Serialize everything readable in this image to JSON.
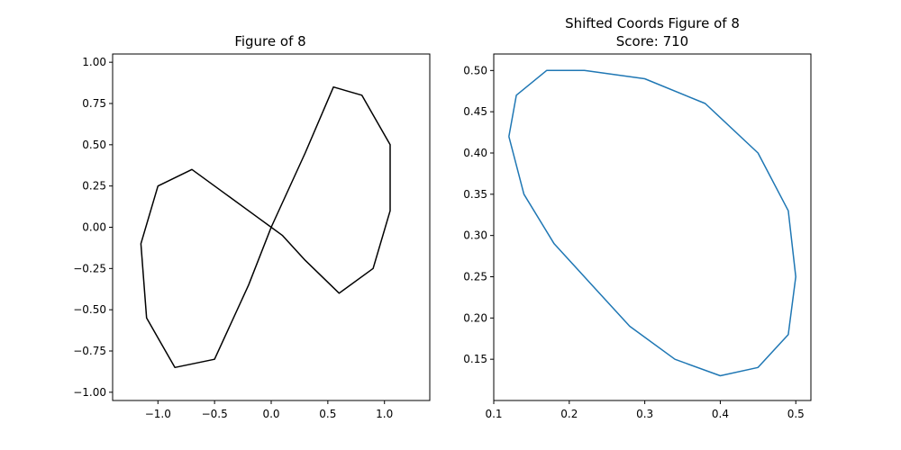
{
  "chart_data": [
    {
      "type": "line",
      "title": "Figure of 8",
      "xlabel": "",
      "ylabel": "",
      "xlim": [
        -1.4,
        1.4
      ],
      "ylim": [
        -1.05,
        1.05
      ],
      "xticks": [
        -1.0,
        -0.5,
        0.0,
        0.5,
        1.0
      ],
      "xtick_labels": [
        "−1.0",
        "−0.5",
        "0.0",
        "0.5",
        "1.0"
      ],
      "yticks": [
        -1.0,
        -0.75,
        -0.5,
        -0.25,
        0.0,
        0.25,
        0.5,
        0.75,
        1.0
      ],
      "ytick_labels": [
        "−1.00",
        "−0.75",
        "−0.50",
        "−0.25",
        "0.00",
        "0.25",
        "0.50",
        "0.75",
        "1.00"
      ],
      "grid": false,
      "series": [
        {
          "color": "#000000",
          "x": [
            0.0,
            0.3,
            0.55,
            0.8,
            1.05,
            1.05,
            0.9,
            0.6,
            0.3,
            0.1,
            0.0,
            -0.2,
            -0.5,
            -0.85,
            -1.1,
            -1.15,
            -1.0,
            -0.7,
            -0.4,
            -0.1,
            0.0
          ],
          "y": [
            0.0,
            0.45,
            0.85,
            0.8,
            0.5,
            0.1,
            -0.25,
            -0.4,
            -0.2,
            -0.05,
            0.0,
            -0.35,
            -0.8,
            -0.85,
            -0.55,
            -0.1,
            0.25,
            0.35,
            0.2,
            0.05,
            0.0
          ]
        }
      ]
    },
    {
      "type": "line",
      "title": "Shifted Coords Figure of 8\nScore: 710",
      "xlabel": "",
      "ylabel": "",
      "xlim": [
        0.1,
        0.52
      ],
      "ylim": [
        0.1,
        0.52
      ],
      "xticks": [
        0.1,
        0.2,
        0.3,
        0.4,
        0.5
      ],
      "xtick_labels": [
        "0.1",
        "0.2",
        "0.3",
        "0.4",
        "0.5"
      ],
      "yticks": [
        0.15,
        0.2,
        0.25,
        0.3,
        0.35,
        0.4,
        0.45,
        0.5
      ],
      "ytick_labels": [
        "0.15",
        "0.20",
        "0.25",
        "0.30",
        "0.35",
        "0.40",
        "0.45",
        "0.50"
      ],
      "grid": false,
      "series": [
        {
          "color": "#1f77b4",
          "x": [
            0.12,
            0.13,
            0.17,
            0.22,
            0.3,
            0.38,
            0.45,
            0.49,
            0.5,
            0.49,
            0.45,
            0.4,
            0.34,
            0.28,
            0.23,
            0.18,
            0.14,
            0.12
          ],
          "y": [
            0.42,
            0.47,
            0.5,
            0.5,
            0.49,
            0.46,
            0.4,
            0.33,
            0.25,
            0.18,
            0.14,
            0.13,
            0.15,
            0.19,
            0.24,
            0.29,
            0.35,
            0.42
          ]
        }
      ]
    }
  ]
}
